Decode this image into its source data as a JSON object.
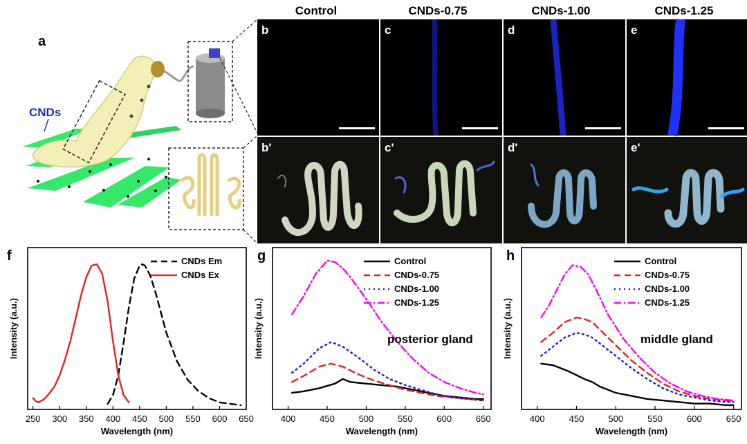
{
  "panel_a": {
    "label": "a",
    "cnds_text": "CNDs"
  },
  "columns": [
    {
      "title": "Control",
      "top_label": "b",
      "bottom_label": "b'",
      "intensity": 0.0
    },
    {
      "title": "CNDs-0.75",
      "top_label": "c",
      "bottom_label": "c'",
      "intensity": 0.3
    },
    {
      "title": "CNDs-1.00",
      "top_label": "d",
      "bottom_label": "d'",
      "intensity": 0.6
    },
    {
      "title": "CNDs-1.25",
      "top_label": "e",
      "bottom_label": "e'",
      "intensity": 1.0
    }
  ],
  "colors": {
    "em": "#000000",
    "ex": "#e8201f",
    "control": "#000000",
    "c075": "#e8201f",
    "c100": "#1a1adc",
    "c125": "#ff00ff",
    "fluor_blue": "#1f2fff",
    "grass": "#35e86a"
  },
  "chart_data": [
    {
      "panel": "f",
      "type": "line",
      "xlabel": "Wavelength (nm)",
      "ylabel": "Intensity (a.u.)",
      "xlim": [
        240,
        650
      ],
      "xticks": [
        250,
        300,
        350,
        400,
        450,
        500,
        550,
        600,
        650
      ],
      "legend": "top-right",
      "series": [
        {
          "name": "CNDs Em",
          "style": "dashed",
          "color": "#000000",
          "x": [
            390,
            400,
            410,
            420,
            430,
            440,
            450,
            455,
            460,
            470,
            480,
            490,
            500,
            520,
            540,
            560,
            580,
            600,
            620,
            640
          ],
          "y": [
            0.02,
            0.08,
            0.22,
            0.45,
            0.7,
            0.9,
            0.99,
            1.0,
            0.99,
            0.92,
            0.8,
            0.66,
            0.52,
            0.32,
            0.19,
            0.11,
            0.06,
            0.03,
            0.02,
            0.01
          ]
        },
        {
          "name": "CNDs Ex",
          "style": "solid",
          "color": "#e8201f",
          "x": [
            250,
            255,
            260,
            270,
            280,
            290,
            300,
            310,
            320,
            330,
            340,
            350,
            360,
            370,
            380,
            390,
            400,
            410,
            420,
            430
          ],
          "y": [
            0.06,
            0.04,
            0.03,
            0.05,
            0.09,
            0.14,
            0.22,
            0.33,
            0.46,
            0.62,
            0.78,
            0.91,
            0.99,
            1.0,
            0.93,
            0.74,
            0.46,
            0.22,
            0.08,
            0.03
          ]
        }
      ]
    },
    {
      "panel": "g",
      "type": "line",
      "xlabel": "Wavelength (nm)",
      "ylabel": "Intensity (a.u.)",
      "xlim": [
        380,
        660
      ],
      "xticks": [
        400,
        450,
        500,
        550,
        600,
        650
      ],
      "legend": "top-right",
      "annotation": "posterior gland",
      "series": [
        {
          "name": "Control",
          "style": "solid",
          "color": "#000000",
          "x": [
            405,
            420,
            440,
            460,
            470,
            480,
            500,
            520,
            540,
            560,
            580,
            600,
            620,
            640,
            650
          ],
          "y": [
            0.09,
            0.1,
            0.12,
            0.15,
            0.18,
            0.16,
            0.15,
            0.14,
            0.13,
            0.11,
            0.09,
            0.07,
            0.06,
            0.05,
            0.05
          ]
        },
        {
          "name": "CNDs-0.75",
          "style": "dashed",
          "color": "#e8201f",
          "x": [
            405,
            420,
            440,
            455,
            470,
            490,
            510,
            530,
            550,
            570,
            590,
            610,
            630,
            650
          ],
          "y": [
            0.16,
            0.2,
            0.26,
            0.28,
            0.26,
            0.21,
            0.17,
            0.14,
            0.11,
            0.09,
            0.07,
            0.06,
            0.05,
            0.04
          ]
        },
        {
          "name": "CNDs-1.00",
          "style": "dotted",
          "color": "#1a1adc",
          "x": [
            405,
            420,
            440,
            455,
            470,
            490,
            510,
            530,
            550,
            570,
            590,
            610,
            630,
            650
          ],
          "y": [
            0.22,
            0.28,
            0.38,
            0.42,
            0.39,
            0.32,
            0.24,
            0.18,
            0.14,
            0.11,
            0.08,
            0.06,
            0.05,
            0.04
          ]
        },
        {
          "name": "CNDs-1.25",
          "style": "dashdot",
          "color": "#ff00ff",
          "x": [
            405,
            420,
            435,
            450,
            460,
            470,
            480,
            500,
            520,
            540,
            560,
            580,
            600,
            620,
            640,
            650
          ],
          "y": [
            0.6,
            0.72,
            0.86,
            0.95,
            0.94,
            0.9,
            0.84,
            0.7,
            0.55,
            0.42,
            0.31,
            0.22,
            0.16,
            0.12,
            0.09,
            0.08
          ]
        }
      ]
    },
    {
      "panel": "h",
      "type": "line",
      "xlabel": "Wavelength (nm)",
      "ylabel": "Intensity (a.u.)",
      "xlim": [
        380,
        660
      ],
      "xticks": [
        400,
        450,
        500,
        550,
        600,
        650
      ],
      "legend": "top-right",
      "annotation": "middle gland",
      "series": [
        {
          "name": "Control",
          "style": "solid",
          "color": "#000000",
          "x": [
            405,
            420,
            440,
            460,
            470,
            480,
            500,
            520,
            540,
            560,
            580,
            600,
            620,
            640,
            650
          ],
          "y": [
            0.28,
            0.27,
            0.23,
            0.18,
            0.16,
            0.13,
            0.09,
            0.07,
            0.05,
            0.04,
            0.03,
            0.02,
            0.02,
            0.01,
            0.01
          ]
        },
        {
          "name": "CNDs-0.75",
          "style": "dashed",
          "color": "#e8201f",
          "x": [
            405,
            420,
            435,
            450,
            460,
            470,
            480,
            500,
            520,
            540,
            560,
            580,
            600,
            620,
            640,
            650
          ],
          "y": [
            0.42,
            0.48,
            0.55,
            0.58,
            0.57,
            0.55,
            0.5,
            0.4,
            0.3,
            0.22,
            0.15,
            0.1,
            0.07,
            0.05,
            0.04,
            0.03
          ]
        },
        {
          "name": "CNDs-1.00",
          "style": "dotted",
          "color": "#1a1adc",
          "x": [
            405,
            420,
            435,
            450,
            460,
            470,
            480,
            500,
            520,
            540,
            560,
            580,
            600,
            620,
            640,
            650
          ],
          "y": [
            0.33,
            0.39,
            0.45,
            0.48,
            0.47,
            0.45,
            0.41,
            0.33,
            0.25,
            0.18,
            0.12,
            0.08,
            0.06,
            0.04,
            0.03,
            0.03
          ]
        },
        {
          "name": "CNDs-1.25",
          "style": "dashdot",
          "color": "#ff00ff",
          "x": [
            405,
            415,
            425,
            435,
            445,
            455,
            465,
            475,
            490,
            510,
            530,
            550,
            570,
            590,
            610,
            630,
            650
          ],
          "y": [
            0.58,
            0.66,
            0.76,
            0.86,
            0.92,
            0.91,
            0.86,
            0.76,
            0.6,
            0.44,
            0.32,
            0.22,
            0.15,
            0.1,
            0.07,
            0.05,
            0.04
          ]
        }
      ]
    }
  ]
}
